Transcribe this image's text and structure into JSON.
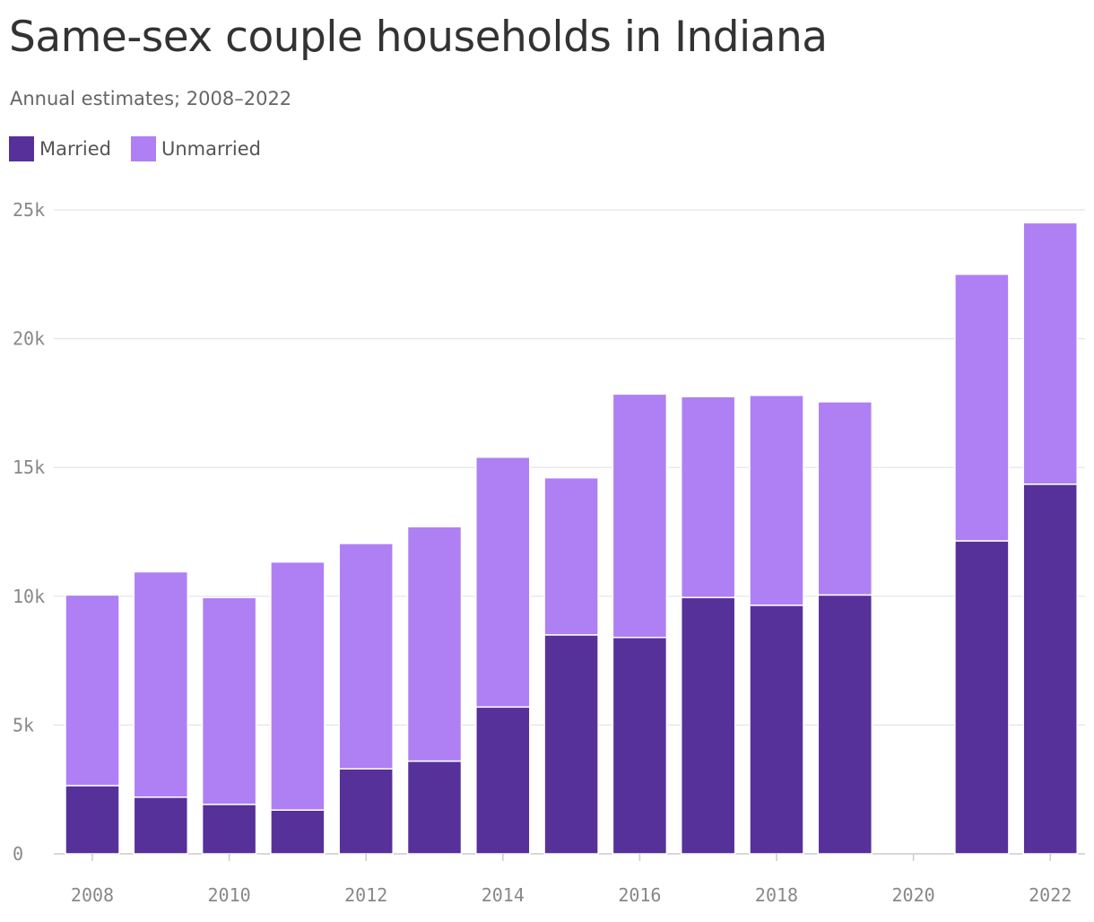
{
  "chart_data": {
    "type": "bar",
    "stacked": true,
    "title": "Same-sex couple households in Indiana",
    "subtitle": "Annual estimates; 2008–2022",
    "categories": [
      "2008",
      "2009",
      "2010",
      "2011",
      "2012",
      "2013",
      "2014",
      "2015",
      "2016",
      "2017",
      "2018",
      "2019",
      "2020",
      "2021",
      "2022"
    ],
    "series": [
      {
        "name": "Married",
        "color": "#56319a",
        "values": [
          2650,
          2200,
          1920,
          1700,
          3300,
          3600,
          5700,
          8500,
          8400,
          9950,
          9650,
          10050,
          null,
          12150,
          14350
        ]
      },
      {
        "name": "Unmarried",
        "color": "#ae80f3",
        "values": [
          7400,
          8750,
          8030,
          9630,
          8750,
          9100,
          9700,
          6100,
          9450,
          7800,
          8150,
          7500,
          null,
          10350,
          10150
        ]
      }
    ],
    "ylim": [
      0,
      25000
    ],
    "yticks": [
      0,
      5000,
      10000,
      15000,
      20000,
      25000
    ],
    "ytick_labels": [
      "0",
      "5k",
      "10k",
      "15k",
      "20k",
      "25k"
    ],
    "xticks": [
      "2008",
      "2010",
      "2012",
      "2014",
      "2016",
      "2018",
      "2020",
      "2022"
    ],
    "xlabel": "",
    "ylabel": "",
    "grid": true,
    "legend_position": "top-left"
  }
}
